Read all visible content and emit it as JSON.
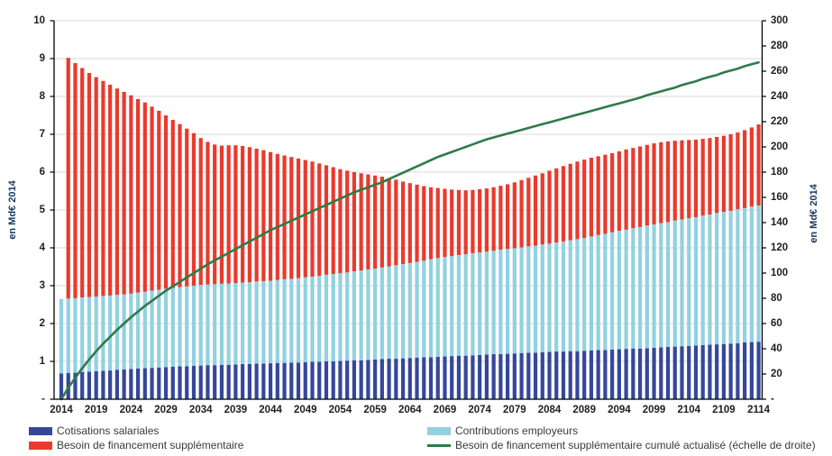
{
  "chart_data": {
    "type": "bar",
    "stacked": true,
    "title": "",
    "grid": true,
    "legend_position": "bottom",
    "x_axis": {
      "start_year": 2014,
      "end_year": 2114,
      "tick_labels": [
        "2014",
        "2019",
        "2024",
        "2029",
        "2034",
        "2039",
        "2044",
        "2049",
        "2054",
        "2059",
        "2064",
        "2069",
        "2074",
        "2079",
        "2084",
        "2089",
        "2094",
        "2099",
        "2104",
        "2109",
        "2114"
      ]
    },
    "left_axis": {
      "title": "en Md€ 2014",
      "min": 0,
      "max": 10,
      "tick_step": 1,
      "tick_labels": [
        "10",
        "9",
        "8",
        "7",
        "6",
        "5",
        "4",
        "3",
        "2",
        "1",
        "-"
      ]
    },
    "right_axis": {
      "title": "en Md€ 2014",
      "min": 0,
      "max": 300,
      "tick_step": 20,
      "tick_labels": [
        "300",
        "280",
        "260",
        "240",
        "220",
        "200",
        "180",
        "160",
        "140",
        "120",
        "100",
        "80",
        "60",
        "40",
        "20",
        "-"
      ]
    },
    "series": [
      {
        "name": "Cotisations salariales",
        "type": "bar",
        "axis": "left",
        "color": "#35479C",
        "values": [
          0.68,
          0.69,
          0.7,
          0.72,
          0.73,
          0.74,
          0.75,
          0.76,
          0.78,
          0.79,
          0.8,
          0.81,
          0.82,
          0.83,
          0.84,
          0.85,
          0.86,
          0.87,
          0.87,
          0.88,
          0.89,
          0.9,
          0.9,
          0.91,
          0.91,
          0.92,
          0.93,
          0.93,
          0.94,
          0.94,
          0.95,
          0.96,
          0.96,
          0.97,
          0.97,
          0.98,
          0.99,
          0.99,
          1.0,
          1.0,
          1.01,
          1.02,
          1.03,
          1.03,
          1.04,
          1.05,
          1.06,
          1.07,
          1.07,
          1.08,
          1.09,
          1.1,
          1.11,
          1.11,
          1.12,
          1.13,
          1.14,
          1.15,
          1.15,
          1.16,
          1.17,
          1.18,
          1.19,
          1.19,
          1.2,
          1.21,
          1.22,
          1.23,
          1.23,
          1.24,
          1.25,
          1.26,
          1.26,
          1.27,
          1.27,
          1.28,
          1.29,
          1.3,
          1.3,
          1.31,
          1.32,
          1.33,
          1.34,
          1.34,
          1.35,
          1.36,
          1.37,
          1.38,
          1.39,
          1.4,
          1.41,
          1.42,
          1.43,
          1.44,
          1.45,
          1.46,
          1.47,
          1.48,
          1.5,
          1.51,
          1.52
        ]
      },
      {
        "name": "Contributions employeurs",
        "type": "bar",
        "axis": "left",
        "color": "#92D1E0",
        "values": [
          1.97,
          1.97,
          1.97,
          1.97,
          1.97,
          1.97,
          1.98,
          1.98,
          1.98,
          1.98,
          1.99,
          2.01,
          2.02,
          2.04,
          2.05,
          2.07,
          2.08,
          2.09,
          2.11,
          2.12,
          2.13,
          2.13,
          2.14,
          2.14,
          2.15,
          2.15,
          2.15,
          2.16,
          2.17,
          2.18,
          2.18,
          2.19,
          2.21,
          2.21,
          2.23,
          2.24,
          2.25,
          2.27,
          2.29,
          2.31,
          2.32,
          2.33,
          2.35,
          2.37,
          2.39,
          2.4,
          2.42,
          2.44,
          2.47,
          2.49,
          2.51,
          2.53,
          2.55,
          2.59,
          2.61,
          2.63,
          2.64,
          2.66,
          2.68,
          2.7,
          2.71,
          2.72,
          2.73,
          2.76,
          2.77,
          2.78,
          2.79,
          2.81,
          2.83,
          2.85,
          2.86,
          2.88,
          2.91,
          2.93,
          2.96,
          2.98,
          3.01,
          3.04,
          3.07,
          3.1,
          3.13,
          3.15,
          3.18,
          3.21,
          3.24,
          3.26,
          3.28,
          3.3,
          3.33,
          3.35,
          3.37,
          3.39,
          3.42,
          3.44,
          3.47,
          3.49,
          3.51,
          3.54,
          3.55,
          3.58,
          3.6
        ]
      },
      {
        "name": "Besoin de financement supplémentaire",
        "type": "bar",
        "axis": "left",
        "color": "#E93A2E",
        "values": [
          0.0,
          6.36,
          6.21,
          6.06,
          5.92,
          5.8,
          5.68,
          5.57,
          5.45,
          5.35,
          5.24,
          5.11,
          5.0,
          4.86,
          4.73,
          4.58,
          4.44,
          4.31,
          4.17,
          4.03,
          3.88,
          3.77,
          3.69,
          3.65,
          3.65,
          3.64,
          3.61,
          3.57,
          3.51,
          3.46,
          3.4,
          3.33,
          3.27,
          3.22,
          3.16,
          3.1,
          3.04,
          2.97,
          2.89,
          2.82,
          2.75,
          2.69,
          2.62,
          2.57,
          2.51,
          2.46,
          2.4,
          2.33,
          2.26,
          2.18,
          2.11,
          2.04,
          1.97,
          1.9,
          1.85,
          1.8,
          1.76,
          1.72,
          1.69,
          1.67,
          1.67,
          1.67,
          1.68,
          1.69,
          1.71,
          1.74,
          1.78,
          1.81,
          1.85,
          1.88,
          1.93,
          1.96,
          1.99,
          2.02,
          2.05,
          2.07,
          2.08,
          2.08,
          2.09,
          2.09,
          2.1,
          2.12,
          2.12,
          2.13,
          2.13,
          2.14,
          2.14,
          2.13,
          2.11,
          2.09,
          2.07,
          2.05,
          2.03,
          2.02,
          2.01,
          2.01,
          2.02,
          2.03,
          2.06,
          2.09,
          2.14
        ]
      },
      {
        "name": "Besoin de financement supplémentaire cumulé actualisé (échelle de droite)",
        "type": "line",
        "axis": "right",
        "color": "#2E7B49",
        "values": [
          0,
          9,
          17,
          24.5,
          31.5,
          38,
          44,
          49.5,
          55,
          60,
          65,
          69.5,
          74,
          78,
          82,
          86,
          89.5,
          93,
          96.5,
          100,
          103.5,
          107,
          110,
          113,
          116,
          119,
          122,
          125,
          128,
          131,
          134,
          136.5,
          139,
          141.5,
          144,
          146.5,
          149,
          151.5,
          154,
          156.5,
          159,
          161.5,
          164,
          166,
          168,
          170,
          172,
          174.5,
          177,
          179.5,
          182,
          184.5,
          187,
          189.5,
          192,
          194,
          196,
          198,
          200,
          202,
          204,
          206,
          207.5,
          209,
          210.5,
          212,
          213.5,
          215,
          216.5,
          218,
          219.5,
          221,
          222.5,
          224,
          225.5,
          227,
          228.5,
          230,
          231.5,
          233,
          234.5,
          236,
          237.5,
          239,
          241,
          242.5,
          244,
          245.5,
          247,
          249,
          250.5,
          252,
          254,
          255.5,
          257,
          259,
          260.5,
          262,
          264,
          265.5,
          267
        ]
      }
    ]
  },
  "colors": {
    "background": "#FFFFFF",
    "gridline": "#D8D8D8",
    "axis_line": "#000000",
    "axis_title": "#17375E",
    "tick_label": "#1F1F1F",
    "legend_text": "#3A3A3A"
  }
}
